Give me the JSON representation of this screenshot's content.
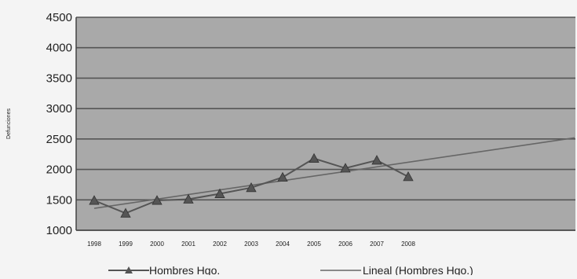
{
  "chart_data": {
    "type": "line",
    "ylabel": "Defunciones",
    "xlabel": "",
    "ylim": [
      1000,
      4500
    ],
    "yticks": [
      1000,
      1500,
      2000,
      2500,
      3000,
      3500,
      4000,
      4500
    ],
    "categories": [
      "1998",
      "1999",
      "2000",
      "2001",
      "2002",
      "2003",
      "2004",
      "2005",
      "2006",
      "2007",
      "2008"
    ],
    "trend_extent_categories": 16,
    "grid": true,
    "legend_position": "bottom",
    "series": [
      {
        "name": "Hombres Hgo.",
        "marker": "triangle",
        "color": "#555555",
        "values": [
          1490,
          1280,
          1490,
          1510,
          1600,
          1700,
          1870,
          2180,
          2020,
          2150,
          1880
        ]
      },
      {
        "name": "Lineal (Hombres Hgo.)",
        "marker": "none",
        "color": "#666666",
        "trend": {
          "start": 1360,
          "end": 2520
        }
      }
    ]
  },
  "colors": {
    "plot_bg": "#a9a9a9",
    "gridline": "#555555",
    "axis": "#444444",
    "text": "#222222",
    "page_bg": "#f4f4f4"
  }
}
